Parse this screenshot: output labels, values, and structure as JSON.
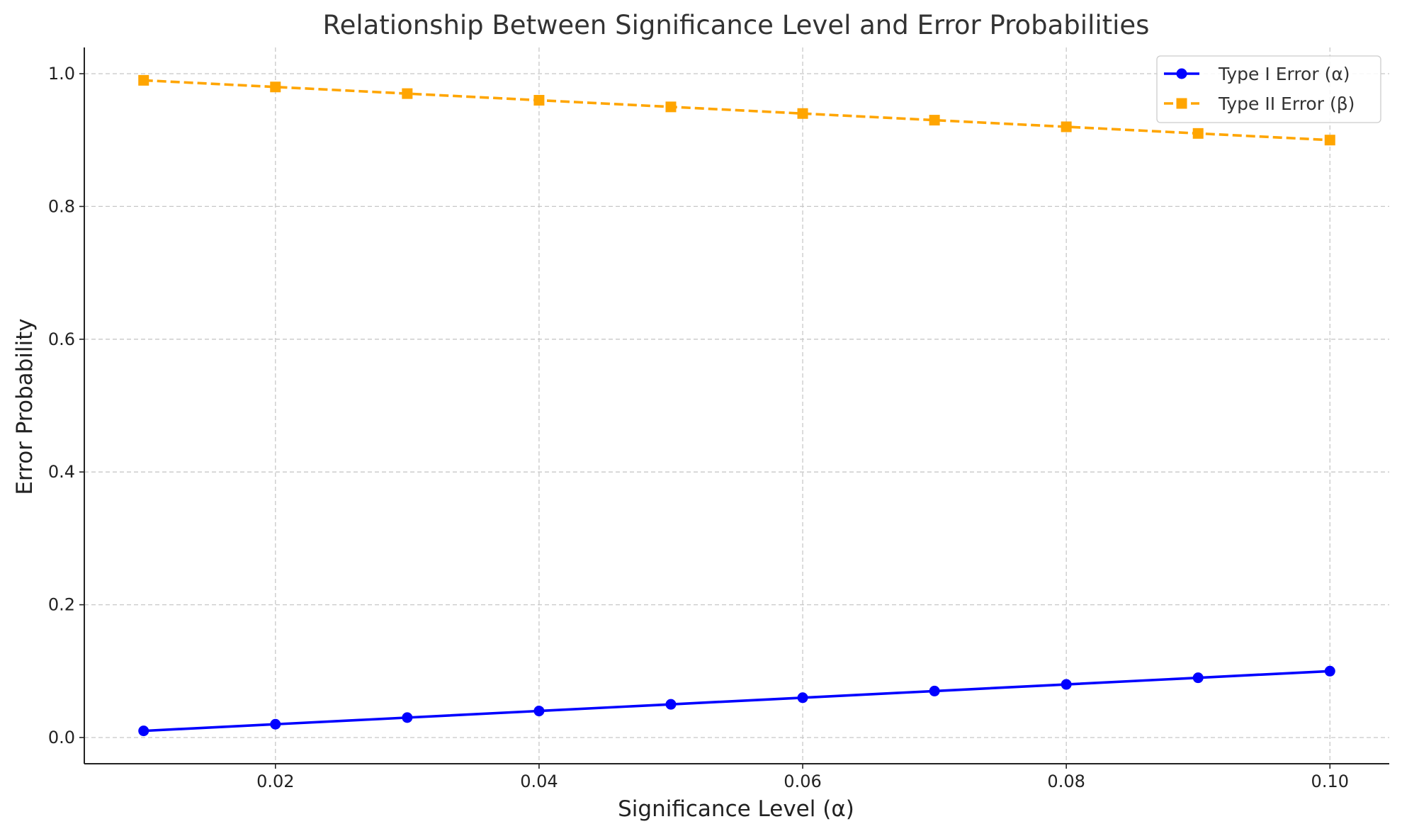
{
  "chart_data": {
    "type": "line",
    "title": "Relationship Between Significance Level and Error Probabilities",
    "xlabel": "Significance Level (α)",
    "ylabel": "Error Probability",
    "x": [
      0.01,
      0.02,
      0.03,
      0.04,
      0.05,
      0.06,
      0.07,
      0.08,
      0.09,
      0.1
    ],
    "xlim": [
      0.0055,
      0.1045
    ],
    "ylim": [
      -0.0395,
      1.0395
    ],
    "xticks": [
      0.02,
      0.04,
      0.06,
      0.08,
      0.1
    ],
    "xtick_labels": [
      "0.02",
      "0.04",
      "0.06",
      "0.08",
      "0.10"
    ],
    "yticks": [
      0.0,
      0.2,
      0.4,
      0.6,
      0.8,
      1.0
    ],
    "ytick_labels": [
      "0.0",
      "0.2",
      "0.4",
      "0.6",
      "0.8",
      "1.0"
    ],
    "grid": true,
    "legend_position": "top-right",
    "series": [
      {
        "name": "Type I Error (α)",
        "values": [
          0.01,
          0.02,
          0.03,
          0.04,
          0.05,
          0.06,
          0.07,
          0.08,
          0.09,
          0.1
        ],
        "color": "#0000ff",
        "line_style": "solid",
        "marker": "circle"
      },
      {
        "name": "Type II Error (β)",
        "values": [
          0.99,
          0.98,
          0.97,
          0.96,
          0.95,
          0.94,
          0.93,
          0.92,
          0.91,
          0.9
        ],
        "color": "#ffa500",
        "line_style": "dashed",
        "marker": "square"
      }
    ]
  }
}
